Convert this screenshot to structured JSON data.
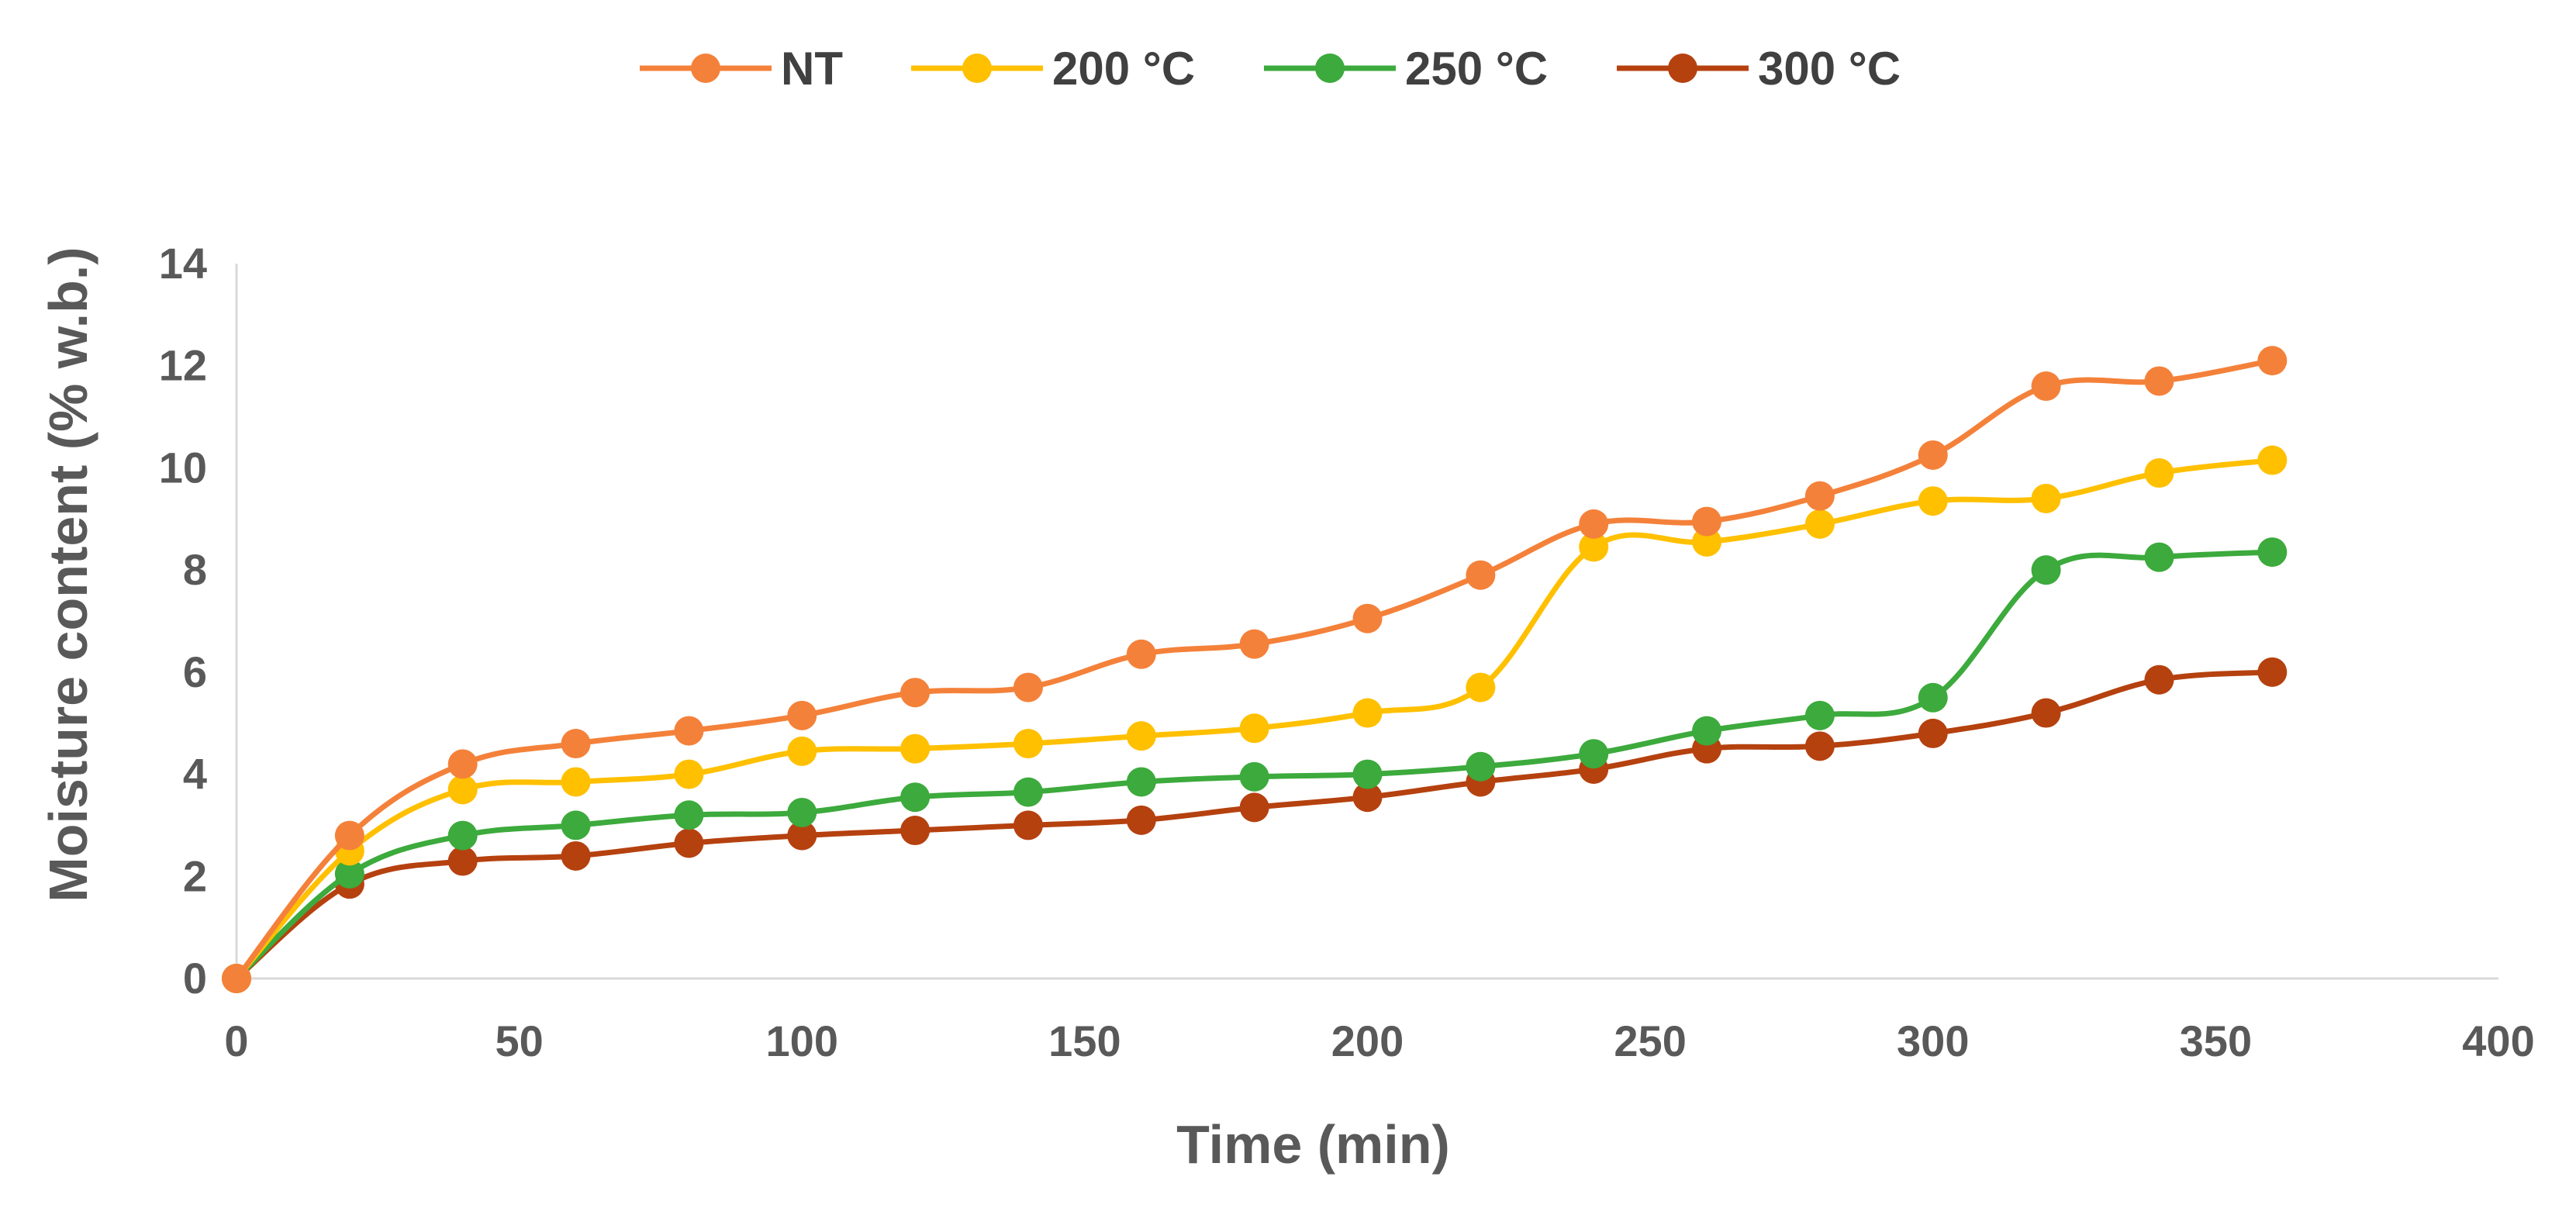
{
  "chart_data": {
    "type": "line",
    "title": "",
    "xlabel": "Time (min)",
    "ylabel": "Moisture content (% w.b.)",
    "xlim": [
      0,
      400
    ],
    "ylim": [
      0,
      14
    ],
    "xticks": [
      0,
      50,
      100,
      150,
      200,
      250,
      300,
      350,
      400
    ],
    "yticks": [
      0,
      2,
      4,
      6,
      8,
      10,
      12,
      14
    ],
    "grid": false,
    "legend_position": "top",
    "x": [
      0,
      20,
      40,
      60,
      80,
      100,
      120,
      140,
      160,
      180,
      200,
      220,
      240,
      260,
      280,
      300,
      320,
      340,
      360
    ],
    "series": [
      {
        "name": "NT",
        "color": "#F4813A",
        "values": [
          0,
          2.8,
          4.2,
          4.6,
          4.85,
          5.15,
          5.6,
          5.7,
          6.35,
          6.55,
          7.05,
          7.9,
          8.9,
          8.95,
          9.45,
          10.25,
          11.6,
          11.7,
          12.1
        ]
      },
      {
        "name": "200 °C",
        "color": "#FFC000",
        "values": [
          0,
          2.5,
          3.7,
          3.85,
          4.0,
          4.45,
          4.5,
          4.6,
          4.75,
          4.9,
          5.2,
          5.7,
          8.45,
          8.55,
          8.9,
          9.35,
          9.4,
          9.9,
          10.15
        ]
      },
      {
        "name": "250 °C",
        "color": "#3CAA3C",
        "values": [
          0,
          2.05,
          2.8,
          3.0,
          3.2,
          3.25,
          3.55,
          3.65,
          3.85,
          3.95,
          4.0,
          4.15,
          4.4,
          4.85,
          5.15,
          5.5,
          8.0,
          8.25,
          8.35
        ]
      },
      {
        "name": "300 °C",
        "color": "#B5410F",
        "values": [
          0,
          1.85,
          2.3,
          2.4,
          2.65,
          2.8,
          2.9,
          3.0,
          3.1,
          3.35,
          3.55,
          3.85,
          4.1,
          4.5,
          4.55,
          4.8,
          5.2,
          5.85,
          6.0
        ]
      }
    ]
  }
}
